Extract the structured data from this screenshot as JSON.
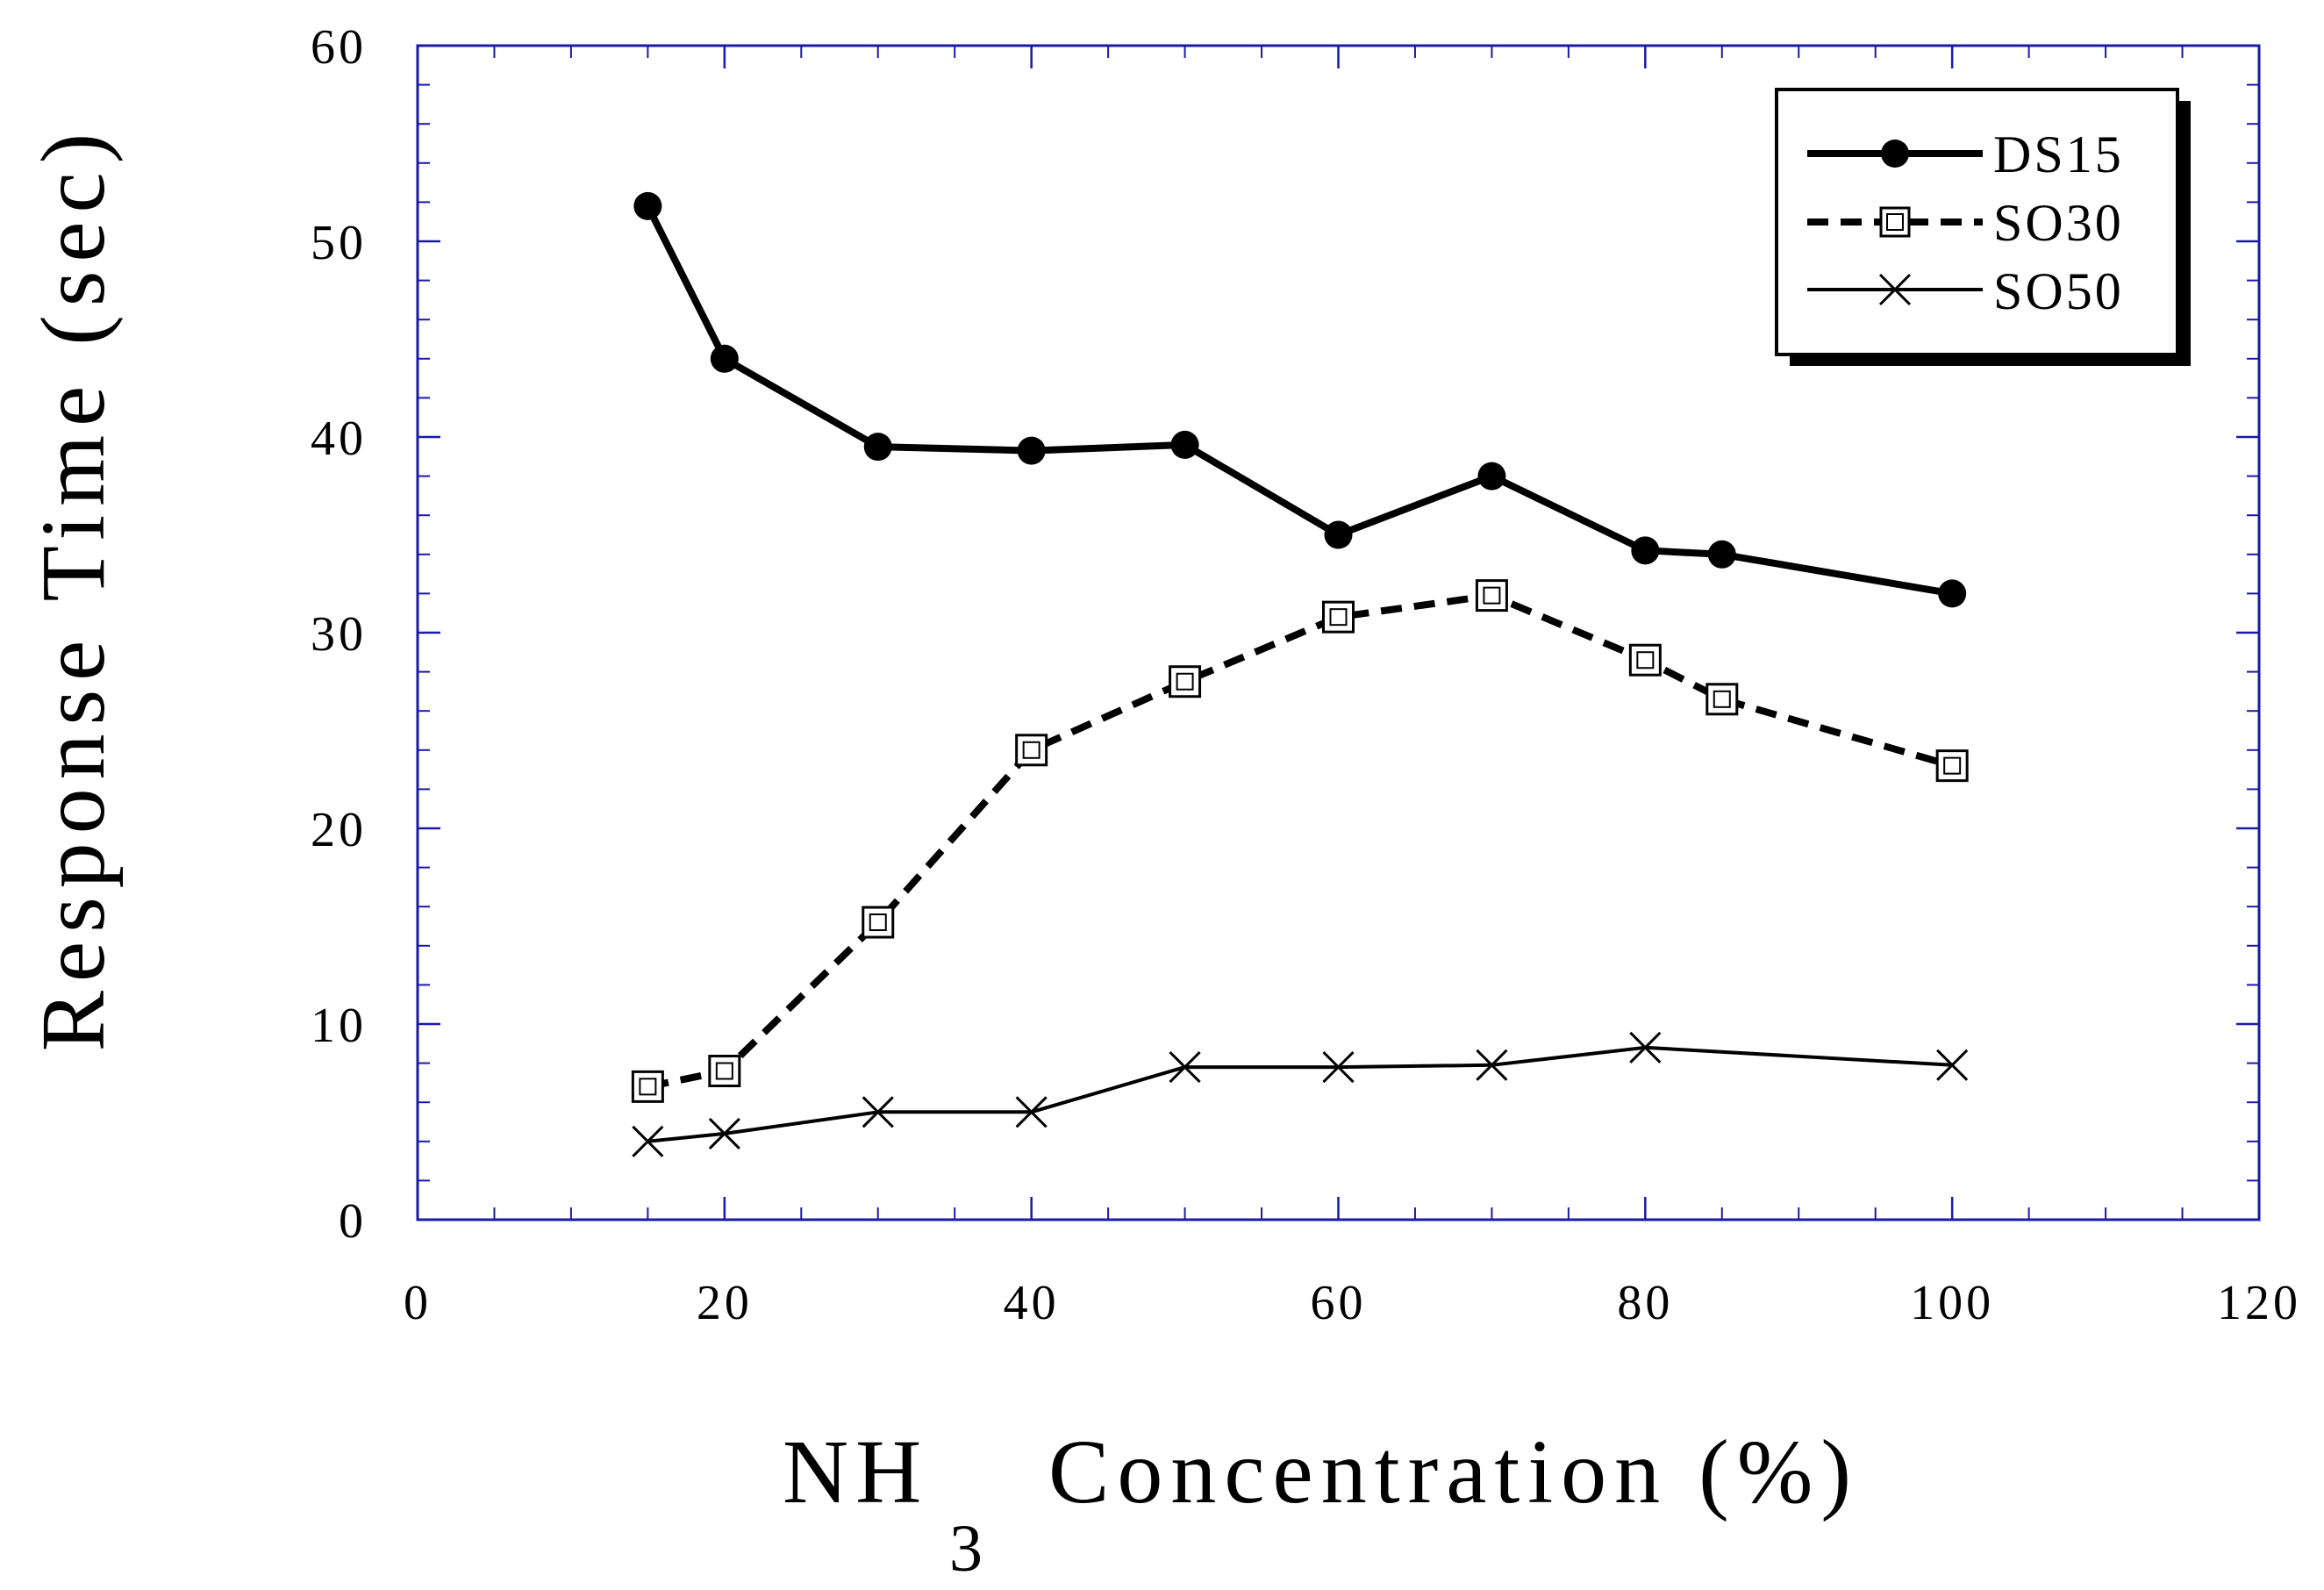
{
  "chart_data": {
    "type": "line",
    "title": "",
    "xlabel": {
      "main": "NH",
      "subscript": "3",
      "rest": "Concentration (%)"
    },
    "ylabel": "Response Time (sec)",
    "xlim": [
      0,
      120
    ],
    "ylim": [
      0,
      60
    ],
    "xticks": [
      0,
      20,
      40,
      60,
      80,
      100,
      120
    ],
    "yticks": [
      0,
      10,
      20,
      30,
      40,
      50,
      60
    ],
    "xtick_labels": [
      "0",
      "20",
      "40",
      "60",
      "80",
      "100",
      "120"
    ],
    "ytick_labels": [
      "0",
      "10",
      "20",
      "30",
      "40",
      "50",
      "60"
    ],
    "x_minor_step": 5,
    "y_minor_step": 2,
    "grid": false,
    "legend_position": "top-right",
    "colors": {
      "axes_frame": "#1a1aa8",
      "series": "#000000"
    },
    "series": [
      {
        "name": "DS15",
        "marker": "filled-circle",
        "line": "solid-thick",
        "x": [
          15,
          20,
          30,
          40,
          50,
          60,
          70,
          80,
          85,
          100
        ],
        "y": [
          51.8,
          44.0,
          39.5,
          39.3,
          39.6,
          35.0,
          38.0,
          34.2,
          34.0,
          32.0
        ]
      },
      {
        "name": "SO30",
        "marker": "open-square",
        "line": "dashed-thick",
        "x": [
          15,
          20,
          30,
          40,
          50,
          60,
          70,
          80,
          85,
          100
        ],
        "y": [
          6.8,
          7.6,
          15.2,
          24.0,
          27.5,
          30.8,
          31.9,
          28.6,
          26.6,
          23.2
        ]
      },
      {
        "name": "SO50",
        "marker": "cross",
        "line": "solid-thin",
        "x": [
          15,
          20,
          30,
          40,
          50,
          60,
          70,
          80,
          100
        ],
        "y": [
          4.0,
          4.4,
          5.5,
          5.5,
          7.8,
          7.8,
          7.9,
          8.8,
          7.9
        ]
      }
    ]
  }
}
